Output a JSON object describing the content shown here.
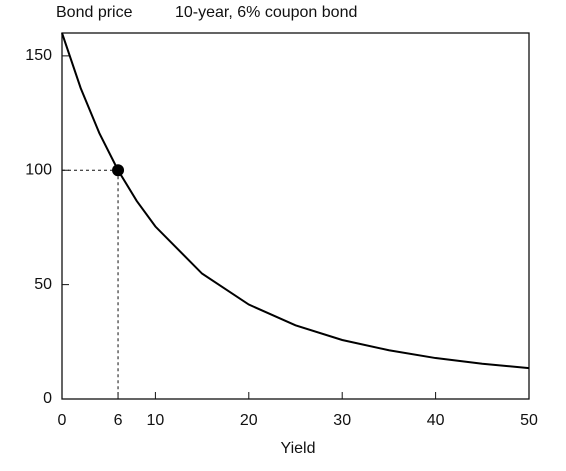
{
  "chart_data": {
    "type": "line",
    "title": "10-year, 6% coupon bond",
    "y_label": "Bond price",
    "x_label": "Yield",
    "x": [
      0,
      2,
      4,
      6,
      8,
      10,
      15,
      20,
      25,
      30,
      35,
      40,
      45,
      50
    ],
    "series": [
      {
        "color": "#000000",
        "values": [
          160,
          135.9,
          116.2,
          100,
          86.6,
          75.4,
          54.8,
          41.3,
          32.2,
          25.8,
          21.3,
          17.9,
          15.4,
          13.5
        ]
      }
    ],
    "highlight": {
      "x": 6,
      "y": 100
    },
    "xlim": [
      0,
      50
    ],
    "ylim": [
      0,
      160
    ],
    "xticks": [
      0,
      6,
      10,
      20,
      30,
      40,
      50
    ],
    "yticks": [
      0,
      50,
      100,
      150
    ],
    "grid": false
  }
}
